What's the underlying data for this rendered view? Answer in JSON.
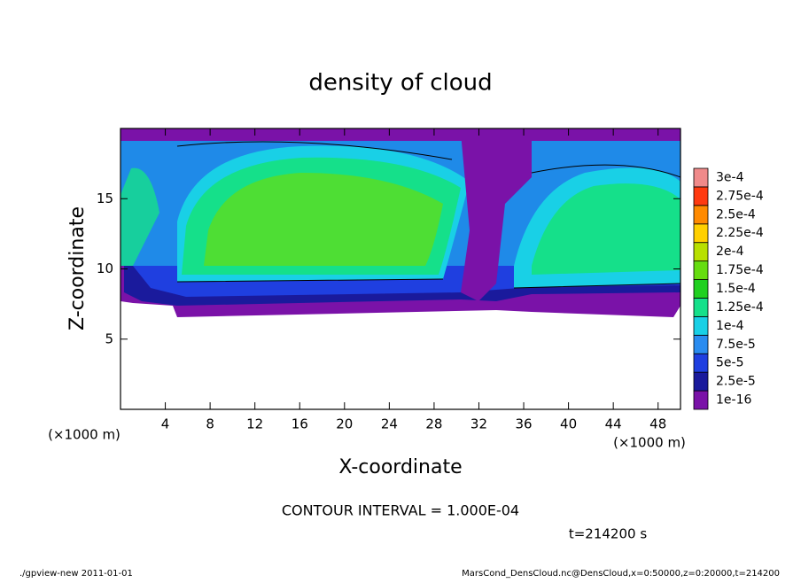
{
  "chart_data": {
    "type": "contour",
    "title": "density of cloud",
    "x_label": "X-coordinate",
    "y_label": "Z-coordinate",
    "x_unit_left": "(×1000 m)",
    "x_unit_right": "(×1000 m)",
    "xlim": [
      0,
      50
    ],
    "xticks": [
      4,
      8,
      12,
      16,
      20,
      24,
      28,
      32,
      36,
      40,
      44,
      48
    ],
    "ylim": [
      0,
      20
    ],
    "yticks": [
      5,
      10,
      15
    ],
    "colorbar": {
      "levels": [
        {
          "value": 1e-16,
          "label": "1e-16"
        },
        {
          "value": 2.5e-05,
          "label": "2.5e-5"
        },
        {
          "value": 5e-05,
          "label": "5e-5"
        },
        {
          "value": 7.5e-05,
          "label": "7.5e-5"
        },
        {
          "value": 0.0001,
          "label": "1e-4"
        },
        {
          "value": 0.000125,
          "label": "1.25e-4"
        },
        {
          "value": 0.00015,
          "label": "1.5e-4"
        },
        {
          "value": 0.000175,
          "label": "1.75e-4"
        },
        {
          "value": 0.0002,
          "label": "2e-4"
        },
        {
          "value": 0.000225,
          "label": "2.25e-4"
        },
        {
          "value": 0.00025,
          "label": "2.5e-4"
        },
        {
          "value": 0.000275,
          "label": "2.75e-4"
        },
        {
          "value": 0.0003,
          "label": "3e-4"
        }
      ],
      "colors": [
        "#7a12a8",
        "#1a1a9c",
        "#1f3fe0",
        "#2a8cf0",
        "#19d0e6",
        "#15e08a",
        "#20d020",
        "#66dd10",
        "#b8e000",
        "#ffd000",
        "#ff8a00",
        "#ff3a10",
        "#f08a8a"
      ]
    },
    "contour_interval": "CONTOUR INTERVAL = 1.000E-04",
    "time_label": "t=214200 s",
    "footer_left": "./gpview-new   2011-01-01",
    "footer_right": "MarsCond_DensCloud.nc@DensCloud,x=0:50000,z=0:20000,t=214200"
  }
}
